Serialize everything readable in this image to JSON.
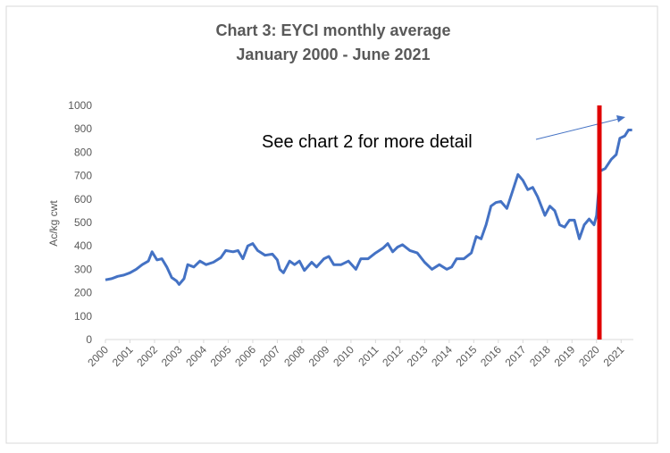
{
  "chart_data": {
    "type": "line",
    "title": "Chart 3: EYCI monthly average",
    "subtitle": "January 2000 - June 2021",
    "y_label": "Ac/kg cwt",
    "annotation": "See chart 2 for more detail",
    "x": [
      2000,
      2000.25,
      2000.5,
      2000.75,
      2001,
      2001.25,
      2001.5,
      2001.75,
      2001.9,
      2002.1,
      2002.3,
      2002.5,
      2002.7,
      2002.9,
      2003.0,
      2003.2,
      2003.35,
      2003.6,
      2003.85,
      2004.1,
      2004.4,
      2004.7,
      2004.9,
      2005.2,
      2005.4,
      2005.6,
      2005.8,
      2006,
      2006.2,
      2006.5,
      2006.8,
      2007,
      2007.1,
      2007.25,
      2007.5,
      2007.7,
      2007.9,
      2008.1,
      2008.4,
      2008.6,
      2008.9,
      2009.1,
      2009.3,
      2009.6,
      2009.9,
      2010.2,
      2010.4,
      2010.7,
      2011,
      2011.3,
      2011.5,
      2011.7,
      2011.9,
      2012.1,
      2012.4,
      2012.7,
      2013,
      2013.3,
      2013.6,
      2013.9,
      2014.1,
      2014.3,
      2014.6,
      2014.9,
      2015.1,
      2015.3,
      2015.5,
      2015.7,
      2015.9,
      2016.1,
      2016.35,
      2016.6,
      2016.8,
      2017,
      2017.2,
      2017.4,
      2017.6,
      2017.9,
      2018.1,
      2018.3,
      2018.5,
      2018.7,
      2018.9,
      2019.1,
      2019.3,
      2019.5,
      2019.7,
      2019.9,
      2020.0,
      2020.15,
      2020.35,
      2020.6,
      2020.8,
      2020.95,
      2021.15,
      2021.3,
      2021.45
    ],
    "series": [
      {
        "name": "EYCI",
        "color": "#4472c4",
        "values": [
          255,
          260,
          270,
          275,
          285,
          300,
          320,
          335,
          375,
          340,
          345,
          310,
          265,
          250,
          235,
          260,
          320,
          310,
          335,
          320,
          330,
          350,
          380,
          375,
          380,
          345,
          400,
          410,
          380,
          360,
          365,
          340,
          300,
          285,
          335,
          320,
          335,
          295,
          330,
          310,
          345,
          355,
          320,
          320,
          335,
          300,
          345,
          345,
          370,
          390,
          410,
          375,
          395,
          405,
          380,
          370,
          330,
          300,
          320,
          300,
          310,
          345,
          345,
          370,
          440,
          430,
          490,
          570,
          585,
          590,
          560,
          640,
          705,
          680,
          640,
          650,
          610,
          530,
          570,
          550,
          490,
          480,
          510,
          510,
          430,
          490,
          515,
          490,
          530,
          720,
          730,
          770,
          790,
          860,
          870,
          895,
          895
        ]
      }
    ],
    "xlim": [
      2000,
      2021.5
    ],
    "xticks": [
      2000,
      2001,
      2002,
      2003,
      2004,
      2005,
      2006,
      2007,
      2008,
      2009,
      2010,
      2011,
      2012,
      2013,
      2014,
      2015,
      2016,
      2017,
      2018,
      2019,
      2020,
      2021
    ],
    "ylim": [
      0,
      1000
    ],
    "yticks": [
      0,
      100,
      200,
      300,
      400,
      500,
      600,
      700,
      800,
      900,
      1000
    ],
    "grid": false
  }
}
